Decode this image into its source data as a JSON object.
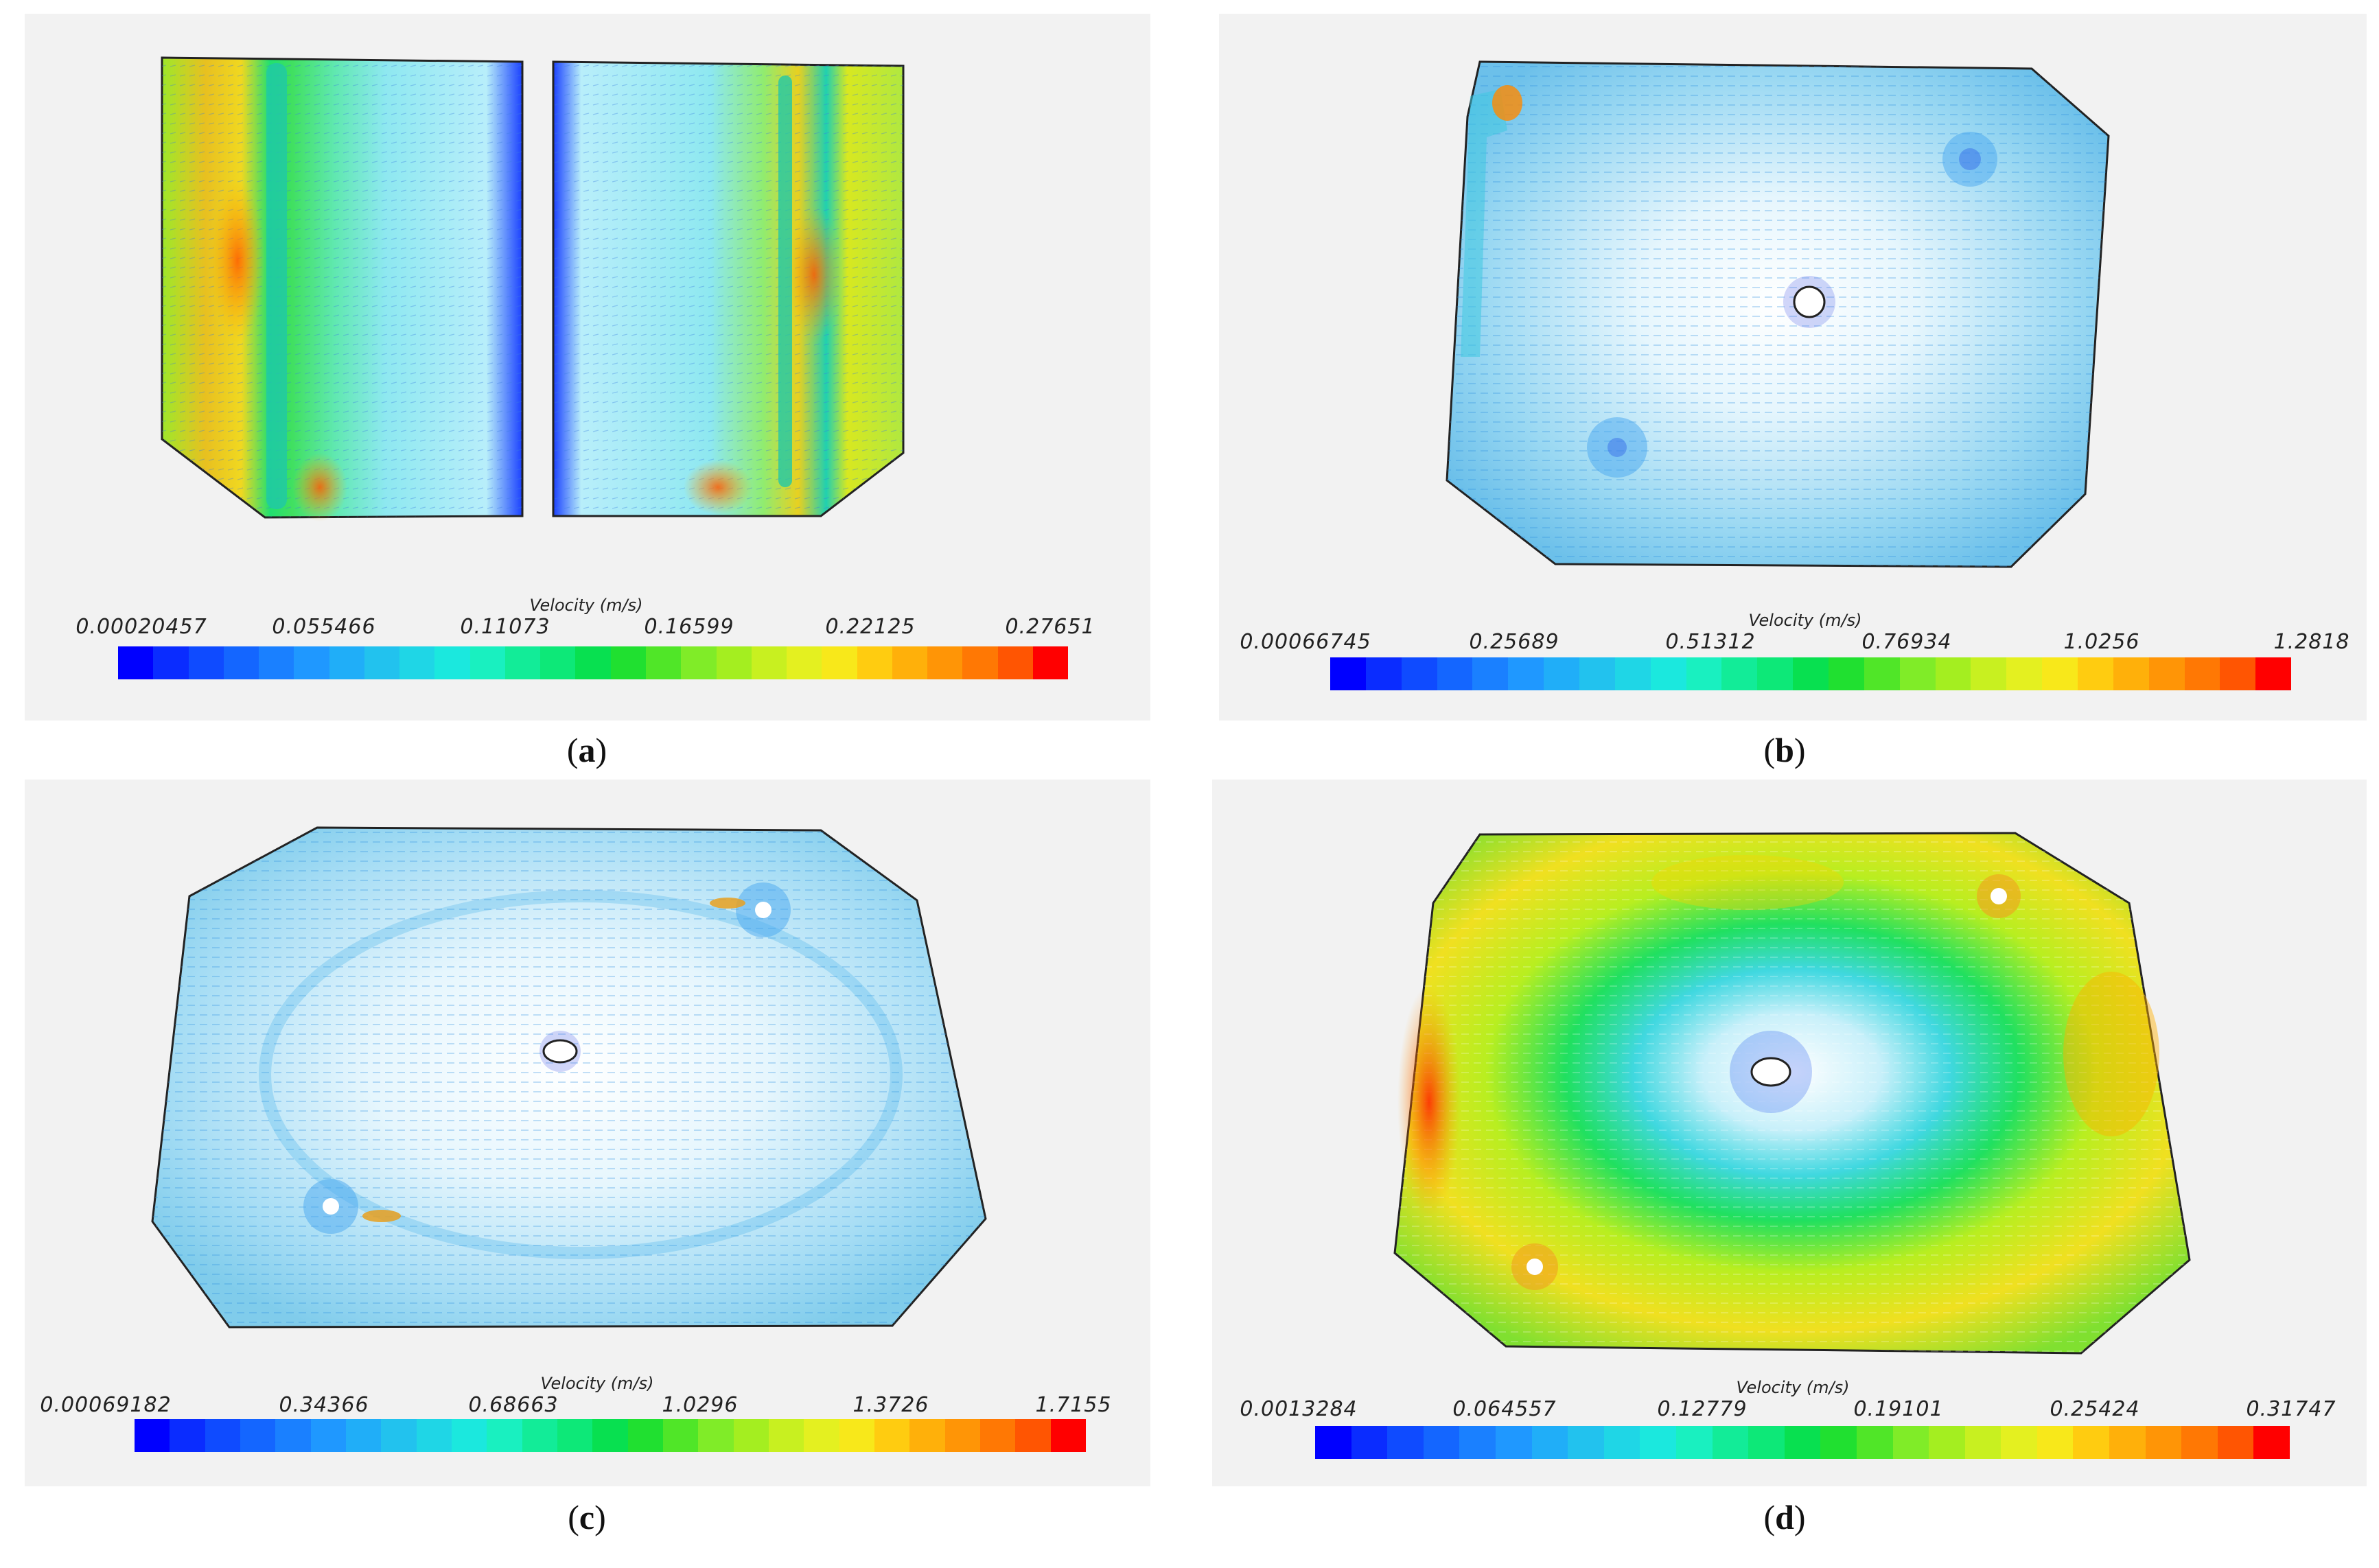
{
  "legend_colors": [
    "#0000ff",
    "#0a2cff",
    "#0f4bff",
    "#1466ff",
    "#1a80ff",
    "#1f98ff",
    "#20aef8",
    "#22c2ee",
    "#1fd6e6",
    "#1be8de",
    "#19f0c0",
    "#12ec98",
    "#0de878",
    "#08e050",
    "#20e030",
    "#50e628",
    "#80ec28",
    "#a4ee20",
    "#c8f020",
    "#e4f020",
    "#f8e81a",
    "#ffcc10",
    "#ffb00a",
    "#ff9506",
    "#ff7804",
    "#ff5502",
    "#ff0000"
  ],
  "panels": [
    {
      "id": "a",
      "caption_open": "(",
      "caption_letter": "a",
      "caption_close": ")",
      "legend_title": "Velocity (m/s)",
      "ticks": [
        "0.00020457",
        "0.055466",
        "0.11073",
        "0.16599",
        "0.22125",
        "0.27651"
      ]
    },
    {
      "id": "b",
      "caption_open": "(",
      "caption_letter": "b",
      "caption_close": ")",
      "legend_title": "Velocity (m/s)",
      "ticks": [
        "0.00066745",
        "0.25689",
        "0.51312",
        "0.76934",
        "1.0256",
        "1.2818"
      ]
    },
    {
      "id": "c",
      "caption_open": "(",
      "caption_letter": "c",
      "caption_close": ")",
      "legend_title": "Velocity (m/s)",
      "ticks": [
        "0.00069182",
        "0.34366",
        "0.68663",
        "1.0296",
        "1.3726",
        "1.7155"
      ]
    },
    {
      "id": "d",
      "caption_open": "(",
      "caption_letter": "d",
      "caption_close": ")",
      "legend_title": "Velocity (m/s)",
      "ticks": [
        "0.0013284",
        "0.064557",
        "0.12779",
        "0.19101",
        "0.25424",
        "0.31747"
      ]
    }
  ]
}
